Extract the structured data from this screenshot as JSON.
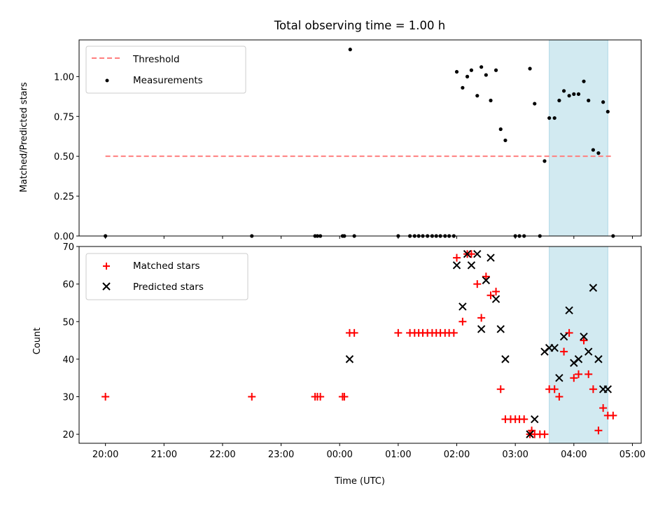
{
  "chart_data": [
    {
      "type": "scatter",
      "title": "Total observing time = 1.00 h",
      "xlabel": "",
      "ylabel": "Matched/Predicted stars",
      "xlim": [
        -0.45,
        9.15
      ],
      "ylim": [
        0.0,
        1.23
      ],
      "yticks": [
        0.0,
        0.25,
        0.5,
        0.75,
        1.0
      ],
      "ytick_labels": [
        "0.00",
        "0.25",
        "0.50",
        "0.75",
        "1.00"
      ],
      "legend_position": "top-left",
      "highlight_span": {
        "x_start": 7.58,
        "x_end": 8.58,
        "color": "#add8e6"
      },
      "series": [
        {
          "name": "Threshold",
          "style": "dashed-line",
          "color": "#ff7f7f",
          "x": [
            0.0,
            8.65
          ],
          "y": [
            0.5,
            0.5
          ]
        },
        {
          "name": "Measurements",
          "style": "dot",
          "color": "#000000",
          "x": [
            0.0,
            2.5,
            3.58,
            3.62,
            3.67,
            4.05,
            4.08,
            4.18,
            4.25,
            5.0,
            5.2,
            5.28,
            5.35,
            5.42,
            5.5,
            5.58,
            5.65,
            5.72,
            5.8,
            5.87,
            5.95,
            6.0,
            6.1,
            6.18,
            6.25,
            6.35,
            6.42,
            6.5,
            6.58,
            6.67,
            6.75,
            6.83,
            7.0,
            7.07,
            7.15,
            7.25,
            7.33,
            7.42,
            7.5,
            7.58,
            7.67,
            7.75,
            7.83,
            7.92,
            8.0,
            8.08,
            8.17,
            8.25,
            8.33,
            8.42,
            8.5,
            8.58,
            8.67
          ],
          "y": [
            0.0,
            0.0,
            0.0,
            0.0,
            0.0,
            0.0,
            0.0,
            1.17,
            0.0,
            0.0,
            0.0,
            0.0,
            0.0,
            0.0,
            0.0,
            0.0,
            0.0,
            0.0,
            0.0,
            0.0,
            0.0,
            1.03,
            0.93,
            1.0,
            1.04,
            0.88,
            1.06,
            1.01,
            0.85,
            1.04,
            0.67,
            0.6,
            0.0,
            0.0,
            0.0,
            1.05,
            0.83,
            0.0,
            0.47,
            0.74,
            0.74,
            0.85,
            0.91,
            0.88,
            0.89,
            0.89,
            0.97,
            0.85,
            0.54,
            0.52,
            0.84,
            0.78,
            0.0
          ]
        }
      ]
    },
    {
      "type": "scatter",
      "title": "",
      "xlabel": "Time (UTC)",
      "ylabel": "Count",
      "xlim": [
        -0.45,
        9.15
      ],
      "ylim": [
        17.6,
        70.0
      ],
      "yticks": [
        20,
        30,
        40,
        50,
        60,
        70
      ],
      "ytick_labels": [
        "20",
        "30",
        "40",
        "50",
        "60",
        "70"
      ],
      "xticks": [
        0,
        1,
        2,
        3,
        4,
        5,
        6,
        7,
        8,
        9
      ],
      "xtick_labels": [
        "20:00",
        "21:00",
        "22:00",
        "23:00",
        "00:00",
        "01:00",
        "02:00",
        "03:00",
        "04:00",
        "05:00"
      ],
      "legend_position": "top-left",
      "highlight_span": {
        "x_start": 7.58,
        "x_end": 8.58,
        "color": "#add8e6"
      },
      "series": [
        {
          "name": "Matched stars",
          "style": "plus",
          "color": "#ff0000",
          "x": [
            0.0,
            2.5,
            3.58,
            3.62,
            3.67,
            4.05,
            4.08,
            4.17,
            4.25,
            5.0,
            5.2,
            5.28,
            5.35,
            5.42,
            5.5,
            5.58,
            5.65,
            5.72,
            5.8,
            5.87,
            5.95,
            6.0,
            6.1,
            6.18,
            6.25,
            6.35,
            6.42,
            6.5,
            6.58,
            6.67,
            6.75,
            6.83,
            7.0,
            7.07,
            7.15,
            7.25,
            7.33,
            7.42,
            7.5,
            7.58,
            7.67,
            7.75,
            7.83,
            7.92,
            8.0,
            8.08,
            8.17,
            8.25,
            8.33,
            8.42,
            8.5,
            8.58,
            8.67,
            6.92,
            7.28
          ],
          "y": [
            30,
            30,
            30,
            30,
            30,
            30,
            30,
            47,
            47,
            47,
            47,
            47,
            47,
            47,
            47,
            47,
            47,
            47,
            47,
            47,
            47,
            67,
            50,
            68,
            68,
            60,
            51,
            62,
            57,
            58,
            32,
            24,
            24,
            24,
            24,
            20,
            20,
            20,
            20,
            32,
            32,
            30,
            42,
            47,
            35,
            36,
            45,
            36,
            32,
            21,
            27,
            25,
            25,
            24,
            21
          ]
        },
        {
          "name": "Predicted stars",
          "style": "x",
          "color": "#000000",
          "x": [
            4.17,
            6.0,
            6.1,
            6.18,
            6.25,
            6.35,
            6.42,
            6.5,
            6.58,
            6.67,
            6.75,
            6.83,
            7.25,
            7.33,
            7.5,
            7.58,
            7.67,
            7.75,
            7.83,
            7.92,
            8.0,
            8.08,
            8.17,
            8.25,
            8.33,
            8.42,
            8.5,
            8.58
          ],
          "y": [
            40,
            65,
            54,
            68,
            65,
            68,
            48,
            61,
            67,
            56,
            48,
            40,
            20,
            24,
            42,
            43,
            43,
            35,
            46,
            53,
            39,
            40,
            46,
            42,
            59,
            40,
            32,
            32
          ]
        }
      ]
    }
  ]
}
